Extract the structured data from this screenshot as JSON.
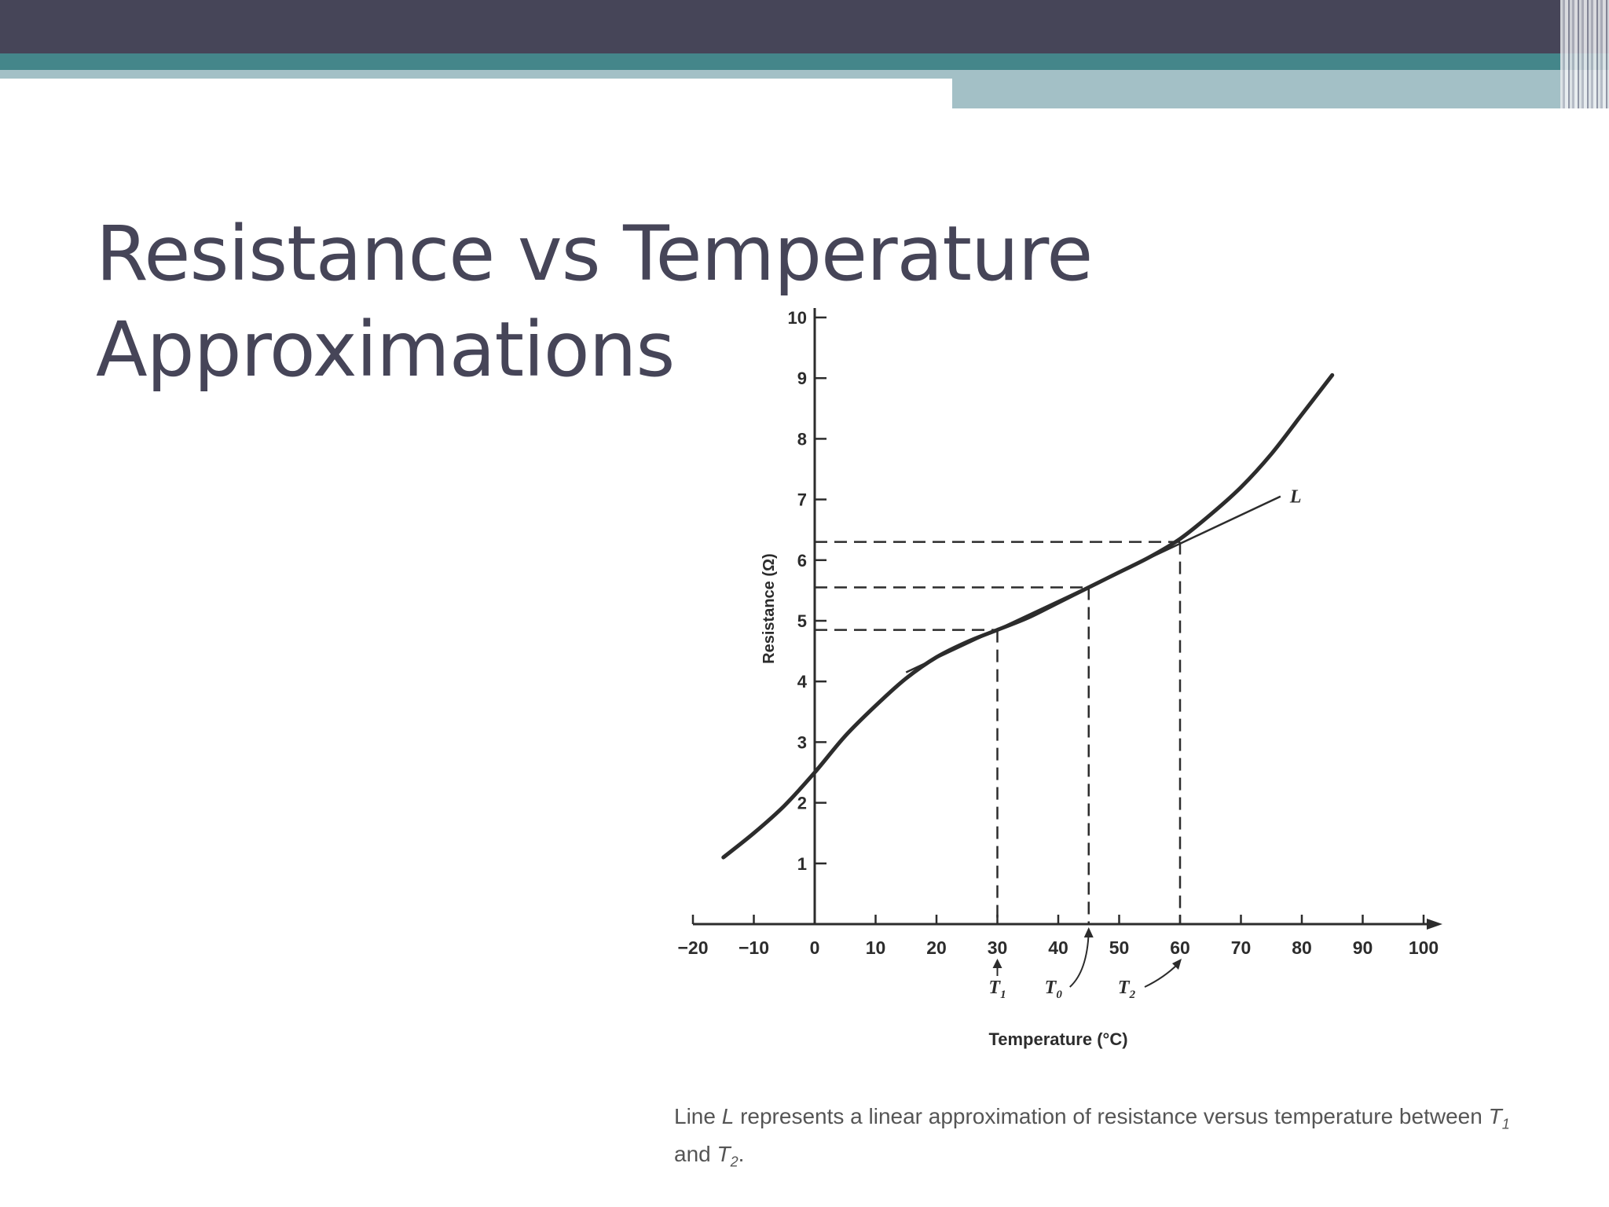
{
  "slide": {
    "title_line1": "Resistance vs Temperature",
    "title_line2": "Approximations",
    "colors": {
      "header_dark": "#464558",
      "header_teal": "#44868a",
      "header_light": "#a3c0c6",
      "title": "#464558"
    }
  },
  "caption": {
    "part1": "Line ",
    "italic_L": "L",
    "part2": " represents a linear approximation of resistance versus temperature between ",
    "T1_base": "T",
    "T1_sub": "1",
    "and": "and ",
    "T2_base": "T",
    "T2_sub": "2",
    "end": "."
  },
  "chart_data": {
    "type": "line",
    "xlabel": "Temperature (°C)",
    "ylabel": "Resistance (Ω)",
    "xlim": [
      -20,
      100
    ],
    "ylim": [
      0,
      10
    ],
    "x_ticks": [
      -20,
      -10,
      0,
      10,
      20,
      30,
      40,
      50,
      60,
      70,
      80,
      90,
      100
    ],
    "x_tick_labels": [
      "−20",
      "−10",
      "0",
      "10",
      "20",
      "30",
      "40",
      "50",
      "60",
      "70",
      "80",
      "90",
      "100"
    ],
    "y_ticks": [
      1,
      2,
      3,
      4,
      5,
      6,
      7,
      8,
      9,
      10
    ],
    "y_tick_labels": [
      "1",
      "2",
      "3",
      "4",
      "5",
      "6",
      "7",
      "8",
      "9",
      "10"
    ],
    "series": [
      {
        "x": [
          -15,
          -10,
          -5,
          0,
          5,
          10,
          15,
          20,
          25,
          30,
          35,
          40,
          45,
          50,
          55,
          60,
          65,
          70,
          75,
          80,
          85
        ],
        "y": [
          1.1,
          1.5,
          1.95,
          2.5,
          3.1,
          3.6,
          4.05,
          4.4,
          4.65,
          4.85,
          5.05,
          5.3,
          5.55,
          5.8,
          6.05,
          6.35,
          6.75,
          7.2,
          7.75,
          8.4,
          9.05
        ]
      },
      {
        "name": "L",
        "x": [
          15,
          76.5
        ],
        "y": [
          4.15,
          7.05
        ]
      }
    ],
    "reference_points": [
      {
        "label": "T",
        "subscript": "1",
        "x": 30,
        "y": 4.85
      },
      {
        "label": "T",
        "subscript": "0",
        "x": 45,
        "y": 5.55
      },
      {
        "label": "T",
        "subscript": "2",
        "x": 60,
        "y": 6.3
      }
    ],
    "grid": false,
    "legend": "none"
  }
}
